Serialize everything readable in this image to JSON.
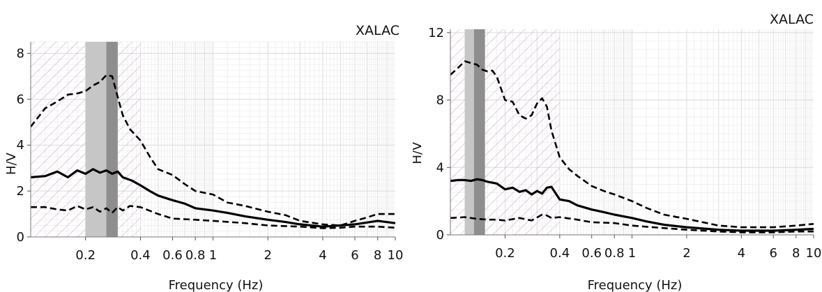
{
  "figure": {
    "panel_count": 2
  },
  "chart_data": [
    {
      "type": "line",
      "station": "XALAC",
      "xlabel": "Frequency (Hz)",
      "ylabel": "H/V",
      "xscale": "log",
      "xlim": [
        0.1,
        10
      ],
      "ylim": [
        0,
        8.5
      ],
      "xticks": [
        0.2,
        0.4,
        0.6,
        0.8,
        1,
        2,
        4,
        6,
        8,
        10
      ],
      "xtick_labels": [
        "0.2",
        "0.4",
        "0.6",
        "0.8",
        "1",
        "2",
        "4",
        "6",
        "8",
        "10"
      ],
      "yticks": [
        0,
        2,
        4,
        6,
        8
      ],
      "ytick_labels": [
        "0",
        "2",
        "4",
        "6",
        "8"
      ],
      "grid": true,
      "hatched_region": [
        0.1,
        0.4
      ],
      "peak_band_outer": [
        0.2,
        0.3
      ],
      "peak_band_inner": [
        0.26,
        0.3
      ],
      "series": [
        {
          "style": "mean-solid",
          "x": [
            0.1,
            0.12,
            0.14,
            0.16,
            0.18,
            0.2,
            0.22,
            0.24,
            0.26,
            0.28,
            0.3,
            0.32,
            0.36,
            0.4,
            0.45,
            0.5,
            0.6,
            0.7,
            0.8,
            1,
            1.2,
            1.5,
            2,
            2.5,
            3,
            4,
            5,
            6,
            8,
            10
          ],
          "y": [
            2.6,
            2.65,
            2.85,
            2.6,
            2.9,
            2.75,
            2.95,
            2.8,
            2.9,
            2.75,
            2.85,
            2.6,
            2.45,
            2.25,
            2.0,
            1.8,
            1.6,
            1.45,
            1.25,
            1.15,
            1.05,
            0.9,
            0.75,
            0.65,
            0.55,
            0.45,
            0.5,
            0.55,
            0.7,
            0.6
          ]
        },
        {
          "style": "upper-dashed",
          "x": [
            0.1,
            0.12,
            0.14,
            0.16,
            0.18,
            0.2,
            0.22,
            0.24,
            0.26,
            0.28,
            0.3,
            0.32,
            0.35,
            0.4,
            0.45,
            0.5,
            0.6,
            0.7,
            0.8,
            1,
            1.2,
            1.5,
            2,
            2.5,
            3,
            4,
            5,
            6,
            7,
            8,
            10
          ],
          "y": [
            4.8,
            5.6,
            5.9,
            6.2,
            6.25,
            6.35,
            6.6,
            6.75,
            7.05,
            7.0,
            6.1,
            5.3,
            4.7,
            4.2,
            3.5,
            2.95,
            2.7,
            2.3,
            2.0,
            1.85,
            1.5,
            1.35,
            1.1,
            0.95,
            0.7,
            0.55,
            0.5,
            0.7,
            0.85,
            1.0,
            1.0
          ]
        },
        {
          "style": "lower-dashed",
          "x": [
            0.1,
            0.12,
            0.14,
            0.16,
            0.18,
            0.2,
            0.22,
            0.24,
            0.26,
            0.28,
            0.3,
            0.32,
            0.35,
            0.4,
            0.5,
            0.6,
            0.8,
            1,
            1.5,
            2,
            3,
            4,
            5,
            6,
            8,
            10
          ],
          "y": [
            1.3,
            1.3,
            1.2,
            1.15,
            1.35,
            1.2,
            1.3,
            1.1,
            1.25,
            1.05,
            1.3,
            1.15,
            1.35,
            1.3,
            1.0,
            0.8,
            0.75,
            0.7,
            0.6,
            0.5,
            0.45,
            0.38,
            0.4,
            0.45,
            0.45,
            0.4
          ]
        }
      ]
    },
    {
      "type": "line",
      "station": "XALAC",
      "xlabel": "Frequency (Hz)",
      "ylabel": "H/V",
      "xscale": "log",
      "xlim": [
        0.1,
        10
      ],
      "ylim": [
        0,
        12.2
      ],
      "xticks": [
        0.2,
        0.4,
        0.6,
        0.8,
        1,
        2,
        4,
        6,
        8,
        10
      ],
      "xtick_labels": [
        "0.2",
        "0.4",
        "0.6",
        "0.8",
        "1",
        "2",
        "4",
        "6",
        "8",
        "10"
      ],
      "yticks": [
        0,
        4,
        8,
        12
      ],
      "ytick_labels": [
        "0",
        "4",
        "8",
        "12"
      ],
      "grid": true,
      "hatched_region": [
        0.1,
        0.4
      ],
      "peak_band_outer": [
        0.12,
        0.155
      ],
      "peak_band_inner": [
        0.135,
        0.155
      ],
      "series": [
        {
          "style": "mean-solid",
          "x": [
            0.1,
            0.11,
            0.12,
            0.13,
            0.14,
            0.15,
            0.16,
            0.18,
            0.2,
            0.22,
            0.24,
            0.26,
            0.28,
            0.3,
            0.32,
            0.34,
            0.36,
            0.4,
            0.45,
            0.5,
            0.6,
            0.7,
            0.8,
            1,
            1.2,
            1.5,
            2,
            3,
            4,
            6,
            8,
            10
          ],
          "y": [
            3.2,
            3.25,
            3.25,
            3.2,
            3.3,
            3.25,
            3.15,
            3.05,
            2.7,
            2.8,
            2.55,
            2.65,
            2.4,
            2.6,
            2.45,
            2.8,
            2.85,
            2.1,
            2.0,
            1.75,
            1.5,
            1.35,
            1.2,
            1.0,
            0.8,
            0.6,
            0.45,
            0.3,
            0.25,
            0.25,
            0.3,
            0.35
          ]
        },
        {
          "style": "upper-dashed",
          "x": [
            0.1,
            0.11,
            0.12,
            0.13,
            0.14,
            0.15,
            0.16,
            0.17,
            0.18,
            0.2,
            0.22,
            0.24,
            0.26,
            0.28,
            0.3,
            0.32,
            0.34,
            0.36,
            0.4,
            0.45,
            0.5,
            0.6,
            0.7,
            0.8,
            1,
            1.2,
            1.5,
            2,
            3,
            4,
            6,
            8,
            10
          ],
          "y": [
            9.5,
            9.9,
            10.3,
            10.2,
            10.1,
            9.8,
            9.7,
            9.75,
            9.4,
            8.0,
            7.9,
            7.1,
            6.9,
            7.1,
            7.8,
            8.1,
            7.6,
            6.2,
            4.6,
            3.9,
            3.5,
            2.9,
            2.6,
            2.4,
            2.0,
            1.6,
            1.2,
            0.95,
            0.55,
            0.45,
            0.45,
            0.55,
            0.65
          ]
        },
        {
          "style": "lower-dashed",
          "x": [
            0.1,
            0.12,
            0.14,
            0.16,
            0.18,
            0.2,
            0.24,
            0.28,
            0.32,
            0.34,
            0.36,
            0.4,
            0.5,
            0.6,
            0.8,
            1,
            1.5,
            2,
            3,
            4,
            6,
            8,
            10
          ],
          "y": [
            1.0,
            1.05,
            0.95,
            0.9,
            0.9,
            0.85,
            1.0,
            0.85,
            1.2,
            1.15,
            1.0,
            1.05,
            0.9,
            0.75,
            0.7,
            0.55,
            0.4,
            0.3,
            0.2,
            0.15,
            0.15,
            0.2,
            0.2
          ]
        }
      ]
    }
  ]
}
